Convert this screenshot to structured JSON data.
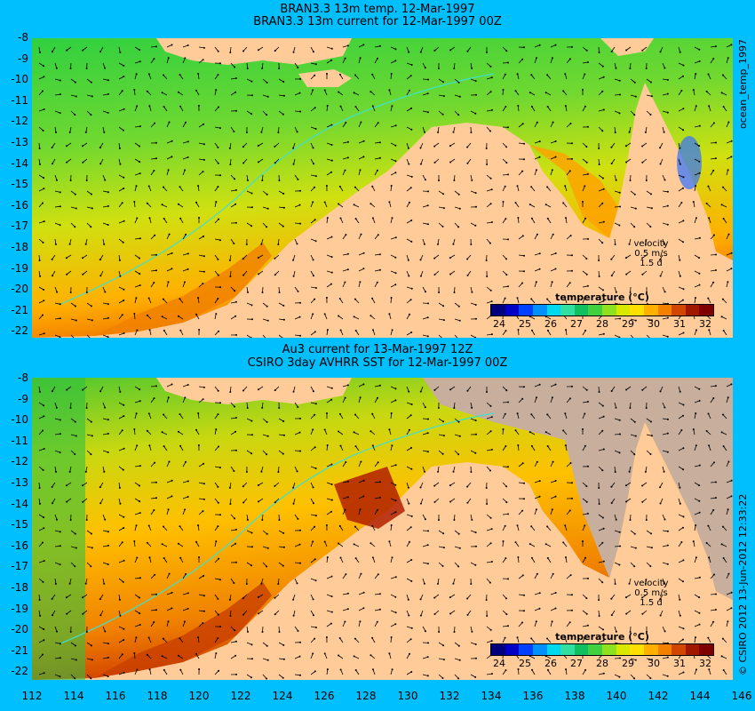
{
  "panel1": {
    "title_line1": "BRAN3.3 13m temp. 12-Mar-1997",
    "title_line2": "BRAN3.3 13m current for 12-Mar-1997 00Z"
  },
  "panel2": {
    "title_line1": "Au3 current for 13-Mar-1997 12Z",
    "title_line2": "CSIRO 3day AVHRR SST for 12-Mar-1997 00Z"
  },
  "lat_ticks": [
    "-8",
    "-9",
    "-10",
    "-11",
    "-12",
    "-13",
    "-14",
    "-15",
    "-16",
    "-17",
    "-18",
    "-19",
    "-20",
    "-21",
    "-22"
  ],
  "lon_ticks": [
    "112",
    "114",
    "116",
    "118",
    "120",
    "122",
    "124",
    "126",
    "128",
    "130",
    "132",
    "134",
    "136",
    "138",
    "140",
    "142",
    "144",
    "146"
  ],
  "colorbar": {
    "title": "temperature (°C)",
    "labels": [
      "24",
      "25",
      "26",
      "27",
      "28",
      "29",
      "30",
      "31",
      "32"
    ],
    "colors": [
      "#00007F",
      "#0000C8",
      "#0040FF",
      "#0090FF",
      "#00D8F0",
      "#30E0A0",
      "#10C060",
      "#40D040",
      "#90E020",
      "#D8E800",
      "#FFE000",
      "#FFB000",
      "#F58000",
      "#D04800",
      "#A01800",
      "#7F0000"
    ]
  },
  "velocity_legend": {
    "line1": "velocity",
    "line2": "0.5 m/s",
    "line3": "1.5 d"
  },
  "side_text": {
    "top": "ocean_temp_1997",
    "bottom": "© CSIRO 2012  13-Jun-2012 12:33:22"
  },
  "colors": {
    "background": "#00BFFF",
    "land": "#FFCC99",
    "missing": "#C8AE9C",
    "isobath": "#40E0D0"
  }
}
